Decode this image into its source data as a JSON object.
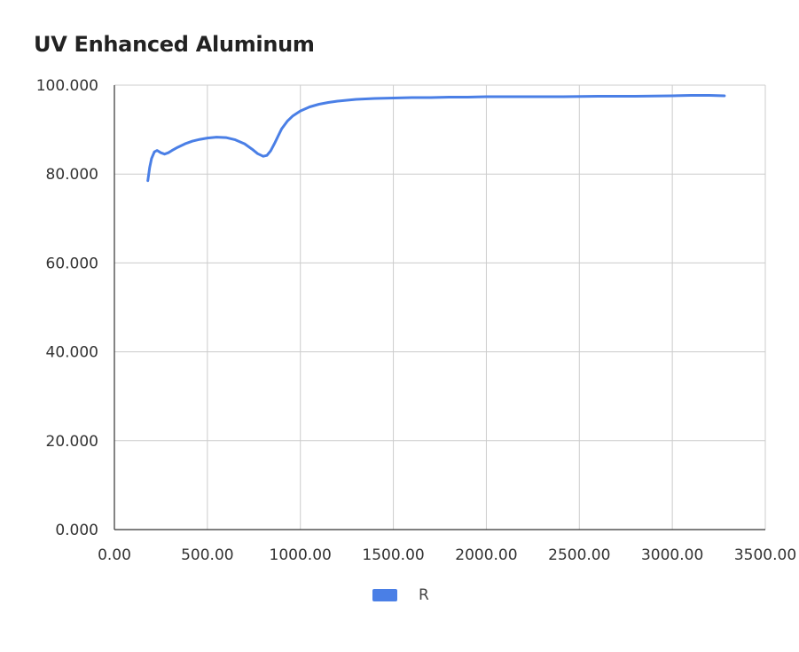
{
  "chart_data": {
    "type": "line",
    "title": "UV Enhanced Aluminum",
    "xlabel": "",
    "ylabel": "",
    "xlim": [
      0,
      3500
    ],
    "ylim": [
      0,
      100
    ],
    "x_ticks": [
      "0.00",
      "500.00",
      "1000.00",
      "1500.00",
      "2000.00",
      "2500.00",
      "3000.00",
      "3500.00"
    ],
    "y_ticks": [
      "0.000",
      "20.000",
      "40.000",
      "60.000",
      "80.000",
      "100.000"
    ],
    "grid": true,
    "legend_position": "bottom",
    "series": [
      {
        "name": "R",
        "color": "#4a7fe6",
        "x": [
          180,
          190,
          200,
          215,
          230,
          250,
          270,
          290,
          310,
          340,
          380,
          420,
          460,
          500,
          550,
          600,
          650,
          700,
          740,
          770,
          800,
          820,
          840,
          860,
          880,
          900,
          930,
          960,
          1000,
          1050,
          1100,
          1150,
          1200,
          1250,
          1300,
          1400,
          1500,
          1600,
          1700,
          1800,
          1900,
          2000,
          2200,
          2400,
          2600,
          2800,
          3000,
          3100,
          3200,
          3280
        ],
        "y": [
          78.5,
          81.5,
          83.5,
          85.0,
          85.3,
          84.8,
          84.5,
          84.8,
          85.3,
          86.0,
          86.8,
          87.4,
          87.8,
          88.1,
          88.3,
          88.2,
          87.7,
          86.8,
          85.6,
          84.6,
          84.0,
          84.2,
          85.2,
          86.8,
          88.5,
          90.2,
          91.9,
          93.1,
          94.2,
          95.1,
          95.7,
          96.1,
          96.4,
          96.6,
          96.8,
          97.0,
          97.1,
          97.2,
          97.2,
          97.3,
          97.3,
          97.4,
          97.4,
          97.4,
          97.5,
          97.5,
          97.6,
          97.7,
          97.7,
          97.6
        ]
      }
    ]
  }
}
